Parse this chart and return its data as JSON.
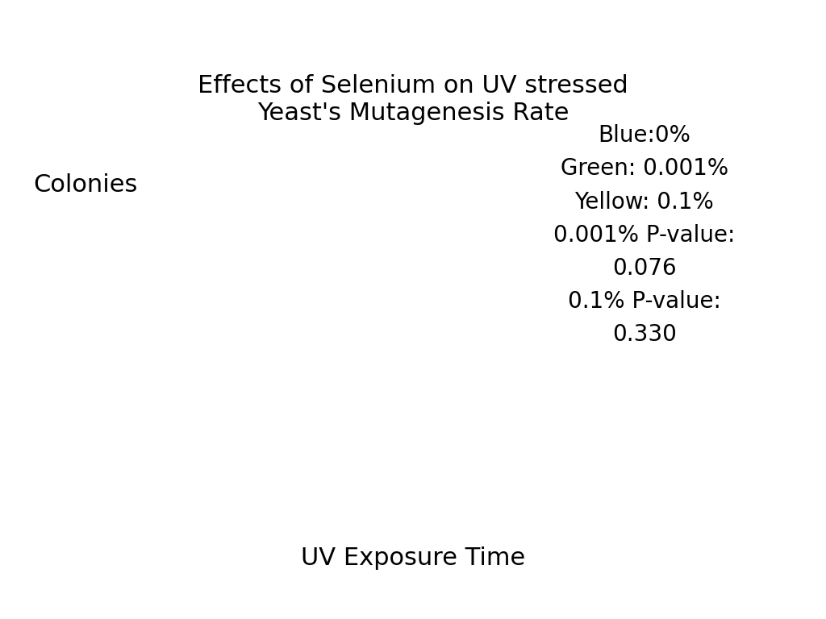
{
  "title": "Effects of Selenium on UV stressed\nYeast's Mutagenesis Rate",
  "colonies_label": "Colonies",
  "xlabel": "UV Exposure Time",
  "annotation_text": "Blue:0%\nGreen: 0.001%\nYellow: 0.1%\n0.001% P-value:\n0.076\n0.1% P-value:\n0.330",
  "background_color": "#ffffff",
  "title_fontsize": 22,
  "label_fontsize": 22,
  "annotation_fontsize": 20,
  "xlabel_fontsize": 22
}
